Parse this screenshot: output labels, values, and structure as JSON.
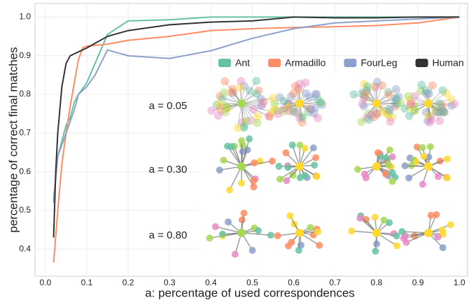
{
  "chart_data": {
    "type": "line",
    "xlabel": "a: percentage of used correspondences",
    "ylabel": "percentage of correct final matches",
    "xlim": [
      -0.025,
      1.02
    ],
    "ylim": [
      0.33,
      1.035
    ],
    "xticks": [
      {
        "value": 0,
        "label": "0.0"
      },
      0.1,
      0.2,
      0.3,
      0.4,
      0.5,
      0.6,
      0.7,
      0.8,
      0.9,
      {
        "value": 1,
        "label": "1.0"
      }
    ],
    "yticks": [
      0.4,
      0.5,
      0.6,
      0.7,
      0.8,
      0.9,
      {
        "value": 1,
        "label": "1.0"
      }
    ],
    "grid": true,
    "legend": "upper right",
    "annotations": [
      "a = 0.05",
      "a = 0.30",
      "a = 0.80"
    ],
    "series": [
      {
        "name": "Ant",
        "color": "#66c2a5",
        "x": [
          0.02,
          0.03,
          0.05,
          0.06,
          0.07,
          0.08,
          0.1,
          0.15,
          0.2,
          0.3,
          0.4,
          0.5,
          0.6,
          0.7,
          0.8,
          0.9,
          1.0
        ],
        "values": [
          0.53,
          0.64,
          0.72,
          0.74,
          0.78,
          0.8,
          0.83,
          0.955,
          0.99,
          0.993,
          1.0,
          1.0,
          1.0,
          1.0,
          1.0,
          1.0,
          1.0
        ]
      },
      {
        "name": "Armadillo",
        "color": "#fc8d62",
        "x": [
          0.02,
          0.03,
          0.04,
          0.05,
          0.06,
          0.07,
          0.08,
          0.09,
          0.1,
          0.15,
          0.2,
          0.3,
          0.4,
          0.5,
          0.6,
          0.7,
          0.8,
          0.9,
          1.0
        ],
        "values": [
          0.365,
          0.5,
          0.62,
          0.7,
          0.77,
          0.83,
          0.89,
          0.92,
          0.925,
          0.93,
          0.94,
          0.95,
          0.965,
          0.97,
          0.973,
          0.975,
          0.978,
          0.985,
          1.0
        ]
      },
      {
        "name": "FourLeg",
        "color": "#8da0cb",
        "x": [
          0.02,
          0.03,
          0.05,
          0.07,
          0.08,
          0.1,
          0.12,
          0.15,
          0.2,
          0.3,
          0.4,
          0.5,
          0.6,
          0.7,
          0.8,
          0.9,
          1.0
        ],
        "values": [
          0.52,
          0.64,
          0.7,
          0.76,
          0.8,
          0.82,
          0.85,
          0.915,
          0.9,
          0.893,
          0.913,
          0.945,
          0.97,
          0.985,
          0.99,
          0.995,
          1.0
        ]
      },
      {
        "name": "Human",
        "color": "#333333",
        "x": [
          0.02,
          0.025,
          0.03,
          0.04,
          0.05,
          0.06,
          0.07,
          0.08,
          0.1,
          0.15,
          0.2,
          0.3,
          0.4,
          0.5,
          0.6,
          0.7,
          0.8,
          0.9,
          1.0
        ],
        "values": [
          0.43,
          0.6,
          0.7,
          0.82,
          0.88,
          0.9,
          0.905,
          0.91,
          0.92,
          0.95,
          0.965,
          0.98,
          0.987,
          0.99,
          1.0,
          0.998,
          0.998,
          1.0,
          1.0
        ]
      }
    ]
  }
}
